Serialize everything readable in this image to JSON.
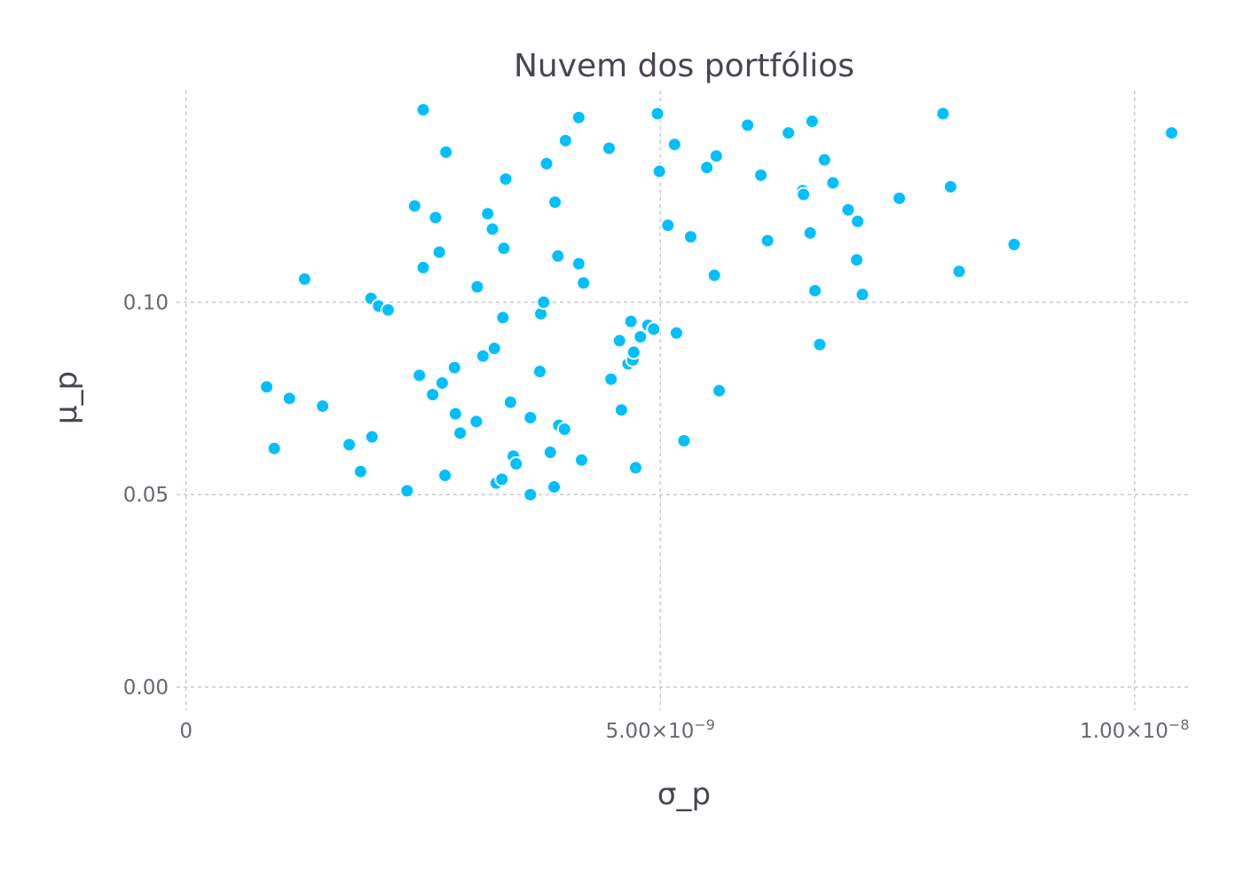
{
  "chart_data": {
    "type": "scatter",
    "title": "Nuvem dos portfólios",
    "xlabel": "σ_p",
    "ylabel": "μ_p",
    "xlim": [
      -1e-10,
      1.06e-08
    ],
    "ylim": [
      -0.006,
      0.155
    ],
    "x_ticks": [
      {
        "value": 0,
        "label": "0",
        "exp": ""
      },
      {
        "value": 5e-09,
        "label": "5.00×10",
        "exp": "−9"
      },
      {
        "value": 1e-08,
        "label": "1.00×10",
        "exp": "−8"
      }
    ],
    "y_ticks": [
      {
        "value": 0.0,
        "label": "0.00"
      },
      {
        "value": 0.05,
        "label": "0.05"
      },
      {
        "value": 0.1,
        "label": "0.10"
      }
    ],
    "grid": true,
    "legend": "none",
    "marker_color": "#00bfff",
    "series": [
      {
        "points": [
          [
            8.5e-10,
            0.078
          ],
          [
            9.3e-10,
            0.062
          ],
          [
            1.09e-09,
            0.075
          ],
          [
            1.25e-09,
            0.106
          ],
          [
            1.44e-09,
            0.073
          ],
          [
            1.72e-09,
            0.063
          ],
          [
            1.84e-09,
            0.056
          ],
          [
            1.96e-09,
            0.065
          ],
          [
            1.95e-09,
            0.101
          ],
          [
            2.03e-09,
            0.099
          ],
          [
            2.13e-09,
            0.098
          ],
          [
            2.33e-09,
            0.051
          ],
          [
            2.41e-09,
            0.125
          ],
          [
            2.46e-09,
            0.081
          ],
          [
            2.5e-09,
            0.109
          ],
          [
            2.5e-09,
            0.15
          ],
          [
            2.6e-09,
            0.076
          ],
          [
            2.63e-09,
            0.122
          ],
          [
            2.67e-09,
            0.113
          ],
          [
            2.7e-09,
            0.079
          ],
          [
            2.73e-09,
            0.055
          ],
          [
            2.74e-09,
            0.139
          ],
          [
            2.83e-09,
            0.083
          ],
          [
            2.84e-09,
            0.071
          ],
          [
            2.89e-09,
            0.066
          ],
          [
            3.06e-09,
            0.069
          ],
          [
            3.07e-09,
            0.104
          ],
          [
            3.13e-09,
            0.086
          ],
          [
            3.18e-09,
            0.123
          ],
          [
            3.23e-09,
            0.119
          ],
          [
            3.25e-09,
            0.088
          ],
          [
            3.27e-09,
            0.053
          ],
          [
            3.33e-09,
            0.054
          ],
          [
            3.34e-09,
            0.096
          ],
          [
            3.35e-09,
            0.114
          ],
          [
            3.37e-09,
            0.132
          ],
          [
            3.42e-09,
            0.074
          ],
          [
            3.45e-09,
            0.06
          ],
          [
            3.48e-09,
            0.058
          ],
          [
            3.63e-09,
            0.05
          ],
          [
            3.63e-09,
            0.07
          ],
          [
            3.73e-09,
            0.082
          ],
          [
            3.74e-09,
            0.097
          ],
          [
            3.77e-09,
            0.1
          ],
          [
            3.8e-09,
            0.136
          ],
          [
            3.84e-09,
            0.061
          ],
          [
            3.88e-09,
            0.052
          ],
          [
            3.89e-09,
            0.126
          ],
          [
            3.92e-09,
            0.112
          ],
          [
            3.93e-09,
            0.068
          ],
          [
            3.99e-09,
            0.067
          ],
          [
            4e-09,
            0.142
          ],
          [
            4.14e-09,
            0.148
          ],
          [
            4.14e-09,
            0.11
          ],
          [
            4.17e-09,
            0.059
          ],
          [
            4.19e-09,
            0.105
          ],
          [
            4.46e-09,
            0.14
          ],
          [
            4.48e-09,
            0.08
          ],
          [
            4.57e-09,
            0.09
          ],
          [
            4.59e-09,
            0.072
          ],
          [
            4.66e-09,
            0.084
          ],
          [
            4.69e-09,
            0.095
          ],
          [
            4.71e-09,
            0.085
          ],
          [
            4.72e-09,
            0.087
          ],
          [
            4.74e-09,
            0.057
          ],
          [
            4.79e-09,
            0.091
          ],
          [
            4.87e-09,
            0.094
          ],
          [
            4.93e-09,
            0.093
          ],
          [
            4.97e-09,
            0.149
          ],
          [
            4.99e-09,
            0.134
          ],
          [
            5.08e-09,
            0.12
          ],
          [
            5.15e-09,
            0.141
          ],
          [
            5.17e-09,
            0.092
          ],
          [
            5.25e-09,
            0.064
          ],
          [
            5.32e-09,
            0.117
          ],
          [
            5.49e-09,
            0.135
          ],
          [
            5.57e-09,
            0.107
          ],
          [
            5.59e-09,
            0.138
          ],
          [
            5.62e-09,
            0.077
          ],
          [
            5.92e-09,
            0.146
          ],
          [
            6.06e-09,
            0.133
          ],
          [
            6.13e-09,
            0.116
          ],
          [
            6.35e-09,
            0.144
          ],
          [
            6.5e-09,
            0.129
          ],
          [
            6.51e-09,
            0.128
          ],
          [
            6.58e-09,
            0.118
          ],
          [
            6.6e-09,
            0.147
          ],
          [
            6.63e-09,
            0.103
          ],
          [
            6.68e-09,
            0.089
          ],
          [
            6.73e-09,
            0.137
          ],
          [
            6.82e-09,
            0.131
          ],
          [
            6.98e-09,
            0.124
          ],
          [
            7.07e-09,
            0.111
          ],
          [
            7.08e-09,
            0.121
          ],
          [
            7.13e-09,
            0.102
          ],
          [
            7.52e-09,
            0.127
          ],
          [
            7.98e-09,
            0.149
          ],
          [
            8.06e-09,
            0.13
          ],
          [
            8.15e-09,
            0.108
          ],
          [
            8.73e-09,
            0.115
          ],
          [
            1.039e-08,
            0.144
          ]
        ]
      }
    ]
  }
}
